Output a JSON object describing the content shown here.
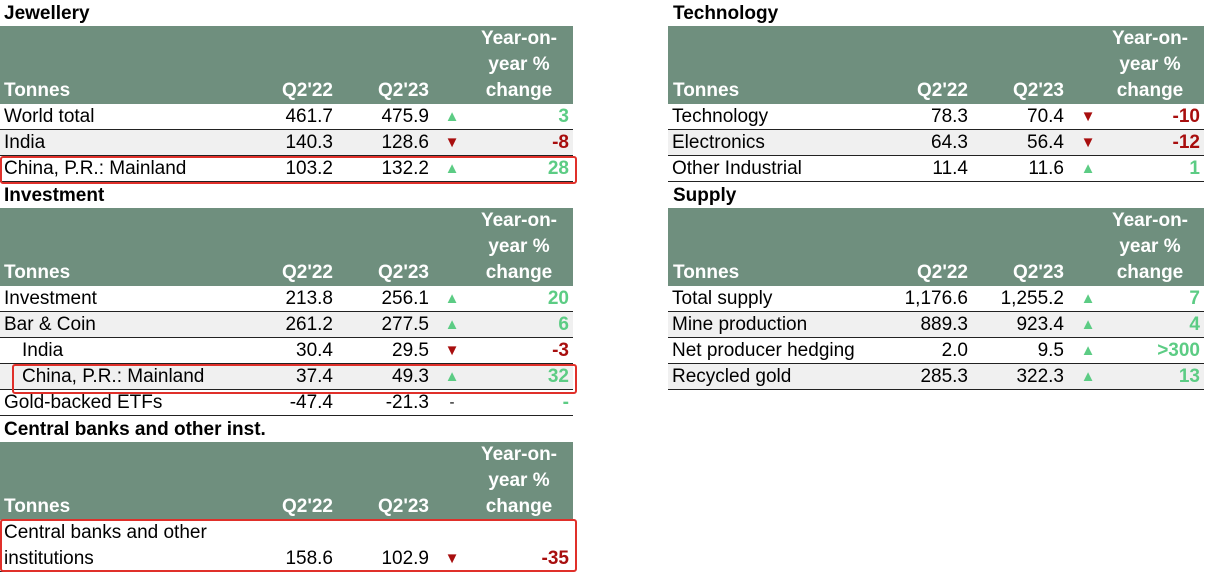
{
  "jewellery": {
    "title": "Jewellery",
    "header": {
      "col_label": "Tonnes",
      "q1": "Q2'22",
      "q2": "Q2'23",
      "yoy": "Year-on-year % change"
    },
    "rows": [
      {
        "label": "World total",
        "q1": "461.7",
        "q2": "475.9",
        "dir": "up",
        "change": "3"
      },
      {
        "label": "India",
        "q1": "140.3",
        "q2": "128.6",
        "dir": "down",
        "change": "-8"
      },
      {
        "label": "China, P.R.: Mainland",
        "q1": "103.2",
        "q2": "132.2",
        "dir": "up",
        "change": "28"
      }
    ]
  },
  "investment": {
    "title": "Investment",
    "header": {
      "col_label": "Tonnes",
      "q1": "Q2'22",
      "q2": "Q2'23",
      "yoy": "Year-on-year % change"
    },
    "rows": [
      {
        "label": "Investment",
        "q1": "213.8",
        "q2": "256.1",
        "dir": "up",
        "change": "20"
      },
      {
        "label": "Bar & Coin",
        "q1": "261.2",
        "q2": "277.5",
        "dir": "up",
        "change": "6"
      },
      {
        "label": "India",
        "q1": "30.4",
        "q2": "29.5",
        "dir": "down",
        "change": "-3"
      },
      {
        "label": "China, P.R.: Mainland",
        "q1": "37.4",
        "q2": "49.3",
        "dir": "up",
        "change": "32"
      },
      {
        "label": "Gold-backed ETFs",
        "q1": "-47.4",
        "q2": "-21.3",
        "dir": "none",
        "change": "-"
      }
    ]
  },
  "central_banks": {
    "title": "Central banks and other inst.",
    "header": {
      "col_label": "Tonnes",
      "q1": "Q2'22",
      "q2": "Q2'23",
      "yoy": "Year-on-year % change"
    },
    "rows": [
      {
        "label": "Central banks and other institutions",
        "q1": "158.6",
        "q2": "102.9",
        "dir": "down",
        "change": "-35"
      }
    ]
  },
  "technology": {
    "title": "Technology",
    "header": {
      "col_label": "Tonnes",
      "q1": "Q2'22",
      "q2": "Q2'23",
      "yoy": "Year-on-year % change"
    },
    "rows": [
      {
        "label": "Technology",
        "q1": "78.3",
        "q2": "70.4",
        "dir": "down",
        "change": "-10"
      },
      {
        "label": "Electronics",
        "q1": "64.3",
        "q2": "56.4",
        "dir": "down",
        "change": "-12"
      },
      {
        "label": "Other Industrial",
        "q1": "11.4",
        "q2": "11.6",
        "dir": "up",
        "change": "1"
      }
    ]
  },
  "supply": {
    "title": "Supply",
    "header": {
      "col_label": "Tonnes",
      "q1": "Q2'22",
      "q2": "Q2'23",
      "yoy": "Year-on-year % change"
    },
    "rows": [
      {
        "label": "Total supply",
        "q1": "1,176.6",
        "q2": "1,255.2",
        "dir": "up",
        "change": "7"
      },
      {
        "label": "Mine production",
        "q1": "889.3",
        "q2": "923.4",
        "dir": "up",
        "change": "4"
      },
      {
        "label": "Net producer hedging",
        "q1": "2.0",
        "q2": "9.5",
        "dir": "up",
        "change": ">300"
      },
      {
        "label": "Recycled gold",
        "q1": "285.3",
        "q2": "322.3",
        "dir": "up",
        "change": "13"
      }
    ]
  },
  "arrows": {
    "up": "▲",
    "down": "▼",
    "none": "-"
  },
  "colors": {
    "header_bg": "#6f8f7e",
    "positive": "#5ccc84",
    "negative": "#a80e0e",
    "highlight": "#e0302a"
  }
}
